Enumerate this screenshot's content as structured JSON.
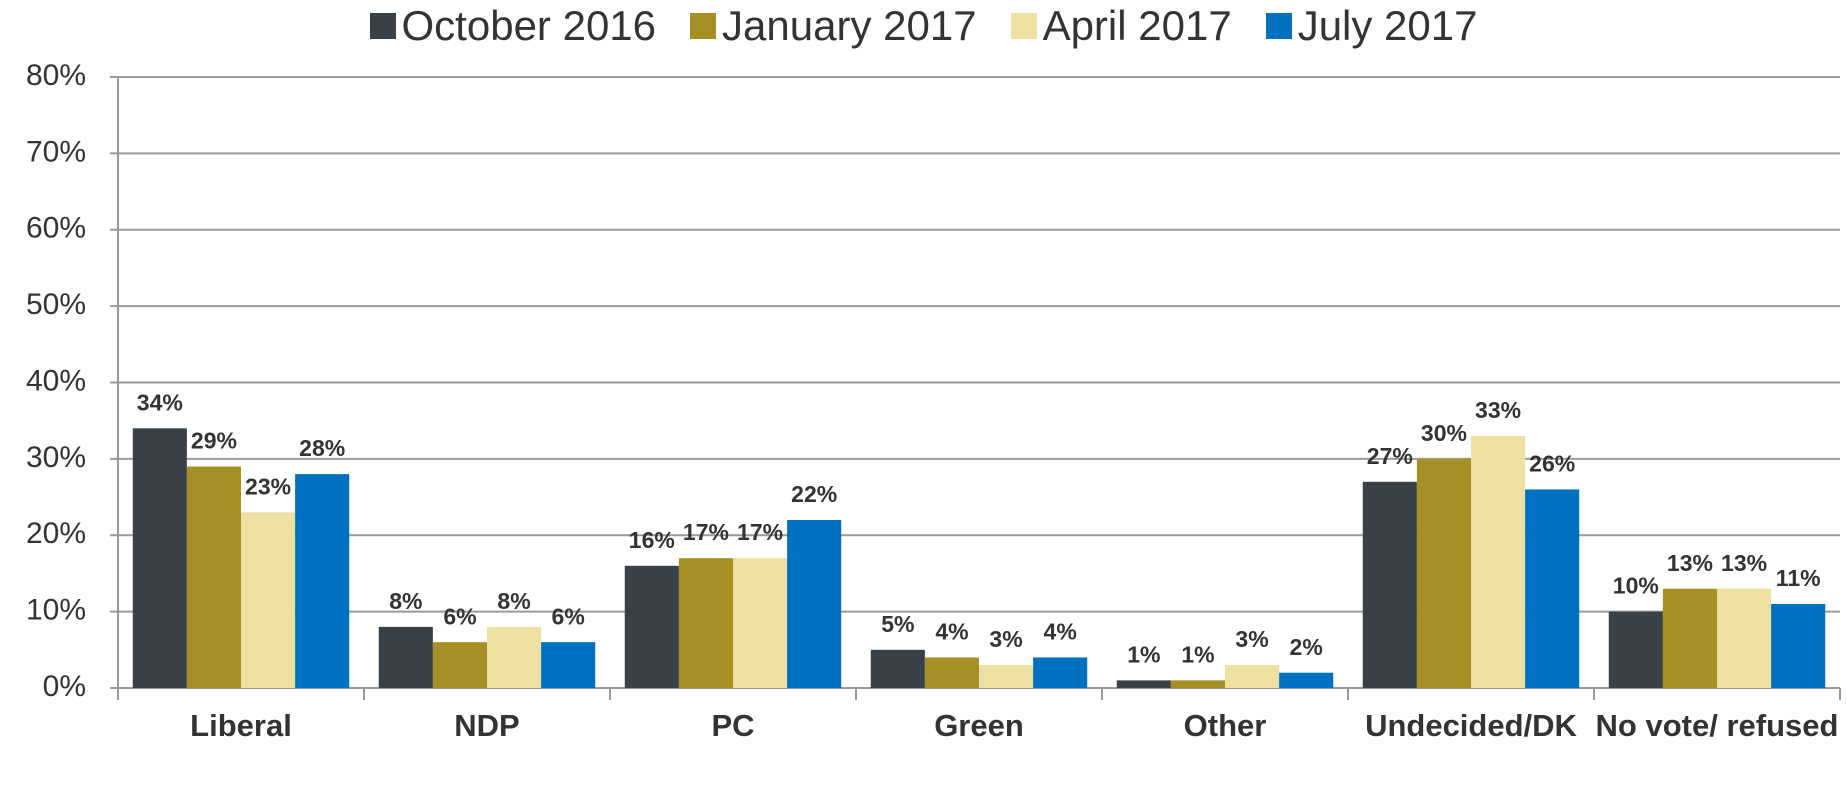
{
  "chart_data": {
    "type": "bar",
    "categories": [
      "Liberal",
      "NDP",
      "PC",
      "Green",
      "Other",
      "Undecided/DK",
      "No vote/ refused"
    ],
    "series": [
      {
        "name": "October 2016",
        "color": "#3a4047",
        "values": [
          34,
          8,
          16,
          5,
          1,
          27,
          10
        ],
        "value_labels": [
          "34%",
          "8%",
          "16%",
          "5%",
          "1%",
          "27%",
          "10%"
        ]
      },
      {
        "name": "January 2017",
        "color": "#a68f25",
        "values": [
          29,
          6,
          17,
          4,
          1,
          30,
          13
        ],
        "value_labels": [
          "29%",
          "6%",
          "17%",
          "4%",
          "1%",
          "30%",
          "13%"
        ]
      },
      {
        "name": "April 2017",
        "color": "#ede0a0",
        "values": [
          23,
          8,
          17,
          3,
          3,
          33,
          13
        ],
        "value_labels": [
          "23%",
          "8%",
          "17%",
          "3%",
          "3%",
          "33%",
          "13%"
        ]
      },
      {
        "name": "July 2017",
        "color": "#0070c0",
        "values": [
          28,
          6,
          22,
          4,
          2,
          26,
          11
        ],
        "value_labels": [
          "28%",
          "6%",
          "22%",
          "4%",
          "2%",
          "26%",
          "11%"
        ]
      }
    ],
    "ylim": [
      0,
      80
    ],
    "yticks": [
      {
        "value": 0,
        "label": "0%"
      },
      {
        "value": 10,
        "label": "10%"
      },
      {
        "value": 20,
        "label": "20%"
      },
      {
        "value": 30,
        "label": "30%"
      },
      {
        "value": 40,
        "label": "40%"
      },
      {
        "value": 50,
        "label": "50%"
      },
      {
        "value": 60,
        "label": "60%"
      },
      {
        "value": 70,
        "label": "70%"
      },
      {
        "value": 80,
        "label": "80%"
      }
    ],
    "grid": true,
    "legend": "top"
  }
}
